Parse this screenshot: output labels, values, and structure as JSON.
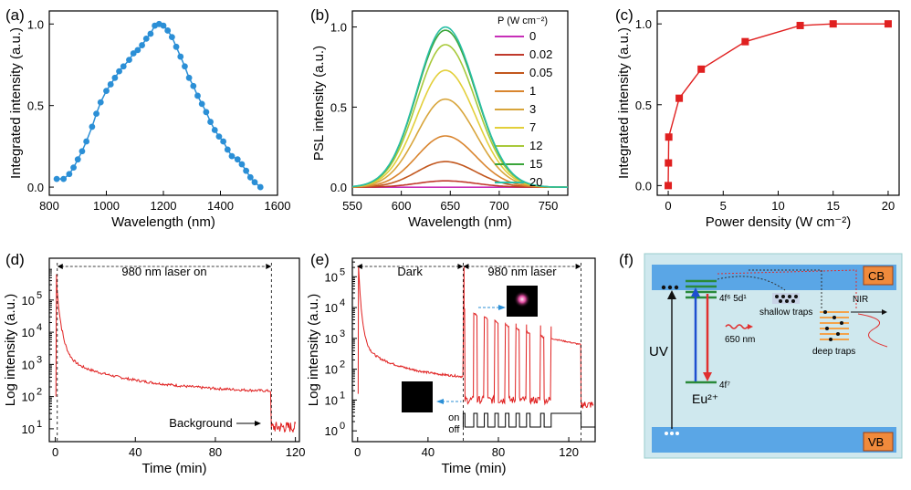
{
  "panels": [
    "(a)",
    "(b)",
    "(c)",
    "(d)",
    "(e)",
    "(f)"
  ],
  "chart_data": [
    {
      "id": "a",
      "type": "line",
      "title": "",
      "xlabel": "Wavelength (nm)",
      "ylabel": "Integrated intensity (a.u.)",
      "xlim": [
        800,
        1600
      ],
      "ylim": [
        -0.05,
        1.08
      ],
      "xticks": [
        800,
        1000,
        1200,
        1400,
        1600
      ],
      "yticks": [
        0.0,
        0.5,
        1.0
      ],
      "ytick_labels": [
        "0.0",
        "0.5",
        "1.0"
      ],
      "color": "#2b8fd6",
      "x": [
        826,
        850,
        870,
        885,
        900,
        915,
        930,
        950,
        965,
        980,
        1000,
        1015,
        1030,
        1045,
        1060,
        1080,
        1095,
        1110,
        1125,
        1140,
        1155,
        1170,
        1185,
        1200,
        1215,
        1230,
        1245,
        1260,
        1275,
        1290,
        1305,
        1320,
        1335,
        1350,
        1365,
        1380,
        1395,
        1410,
        1425,
        1440,
        1460,
        1475,
        1490,
        1505,
        1520,
        1540
      ],
      "y": [
        0.05,
        0.05,
        0.08,
        0.12,
        0.17,
        0.22,
        0.28,
        0.37,
        0.45,
        0.52,
        0.59,
        0.63,
        0.67,
        0.71,
        0.74,
        0.78,
        0.82,
        0.84,
        0.87,
        0.91,
        0.94,
        0.99,
        1.0,
        0.99,
        0.96,
        0.92,
        0.86,
        0.8,
        0.74,
        0.67,
        0.62,
        0.56,
        0.51,
        0.46,
        0.4,
        0.35,
        0.31,
        0.28,
        0.23,
        0.19,
        0.17,
        0.14,
        0.1,
        0.06,
        0.03,
        0.0
      ]
    },
    {
      "id": "b",
      "type": "line",
      "xlabel": "Wavelength (nm)",
      "ylabel": "PSL intensity (a.u.)",
      "xlim": [
        550,
        770
      ],
      "ylim": [
        -0.05,
        1.1
      ],
      "xticks": [
        550,
        600,
        650,
        700,
        750
      ],
      "yticks": [
        0.0,
        0.5,
        1.0
      ],
      "ytick_labels": [
        "0.0",
        "0.5",
        "1.0"
      ],
      "legend_title": "P (W cm⁻²)",
      "peak_wavelength_nm": 645,
      "series": [
        {
          "name": "0",
          "peak": 0.0,
          "color": "#c72fb8"
        },
        {
          "name": "0.02",
          "peak": 0.04,
          "color": "#c0392b"
        },
        {
          "name": "0.05",
          "peak": 0.16,
          "color": "#c2571e"
        },
        {
          "name": "1",
          "peak": 0.32,
          "color": "#d9852f"
        },
        {
          "name": "3",
          "peak": 0.55,
          "color": "#d8a53b"
        },
        {
          "name": "7",
          "peak": 0.73,
          "color": "#e3cf3a"
        },
        {
          "name": "12",
          "peak": 0.89,
          "color": "#a8c93a"
        },
        {
          "name": "15",
          "peak": 0.98,
          "color": "#3aa53a"
        },
        {
          "name": "20",
          "peak": 1.0,
          "color": "#2bbfa6"
        }
      ]
    },
    {
      "id": "c",
      "type": "line",
      "xlabel": "Power density (W cm⁻²)",
      "ylabel": "Integrated intensity (a.u.)",
      "xlim": [
        -1,
        21
      ],
      "ylim": [
        -0.06,
        1.08
      ],
      "xticks": [
        0,
        5,
        10,
        15,
        20
      ],
      "yticks": [
        0.0,
        0.5,
        1.0
      ],
      "ytick_labels": [
        "0.0",
        "0.5",
        "1.0"
      ],
      "color": "#e02020",
      "x": [
        0,
        0.02,
        0.05,
        1,
        3,
        7,
        12,
        15,
        20
      ],
      "y": [
        0.0,
        0.14,
        0.3,
        0.54,
        0.72,
        0.89,
        0.99,
        1.0,
        1.0
      ]
    },
    {
      "id": "d",
      "type": "line",
      "xlabel": "Time (min)",
      "ylabel": "Log intensity (a.u.)",
      "xlim": [
        -3,
        122
      ],
      "ylog": [
        0.6,
        6.3
      ],
      "xticks": [
        0,
        40,
        80,
        120
      ],
      "yticks_log": [
        1,
        2,
        3,
        4,
        5
      ],
      "ytick_labels": [
        "10",
        "10",
        "10",
        "10",
        "10"
      ],
      "ytick_exponents": [
        "1",
        "2",
        "3",
        "4",
        "5"
      ],
      "color": "#e02020",
      "annotation_laser": "980 nm laser on",
      "annotation_background": "Background",
      "laser_on_start": 1,
      "laser_off": 108
    },
    {
      "id": "e",
      "type": "line",
      "xlabel": "Time (min)",
      "ylabel": "Log intensity (a.u.)",
      "xlim": [
        -3,
        135
      ],
      "ylog": [
        -0.35,
        5.6
      ],
      "xticks": [
        0,
        40,
        80,
        120
      ],
      "yticks_log": [
        0,
        1,
        2,
        3,
        4,
        5
      ],
      "ytick_labels": [
        "10",
        "10",
        "10",
        "10",
        "10",
        "10"
      ],
      "ytick_exponents": [
        "0",
        "1",
        "2",
        "3",
        "4",
        "5"
      ],
      "color": "#e02020",
      "label_dark": "Dark",
      "label_laser": "980 nm laser",
      "label_on": "on",
      "label_off": "off",
      "dark_end": 60,
      "laser_end": 127
    }
  ],
  "diagram": {
    "labels": {
      "cb": "CB",
      "vb": "VB",
      "uv": "UV",
      "state_upper": "4f⁶ 5d¹",
      "state_lower": "4f⁷",
      "ion": "Eu²⁺",
      "emission": "650 nm",
      "shallow": "shallow traps",
      "deep": "deep traps",
      "nir": "NIR"
    },
    "colors": {
      "panel": "#cfe8ee",
      "band_fill": "#5aa6e6",
      "band_tag": "#f08a3c",
      "levels": "#2a8a3a",
      "blue_arrow": "#1d4fd0",
      "emission": "#e03030",
      "trap": "#f3a24a"
    }
  }
}
